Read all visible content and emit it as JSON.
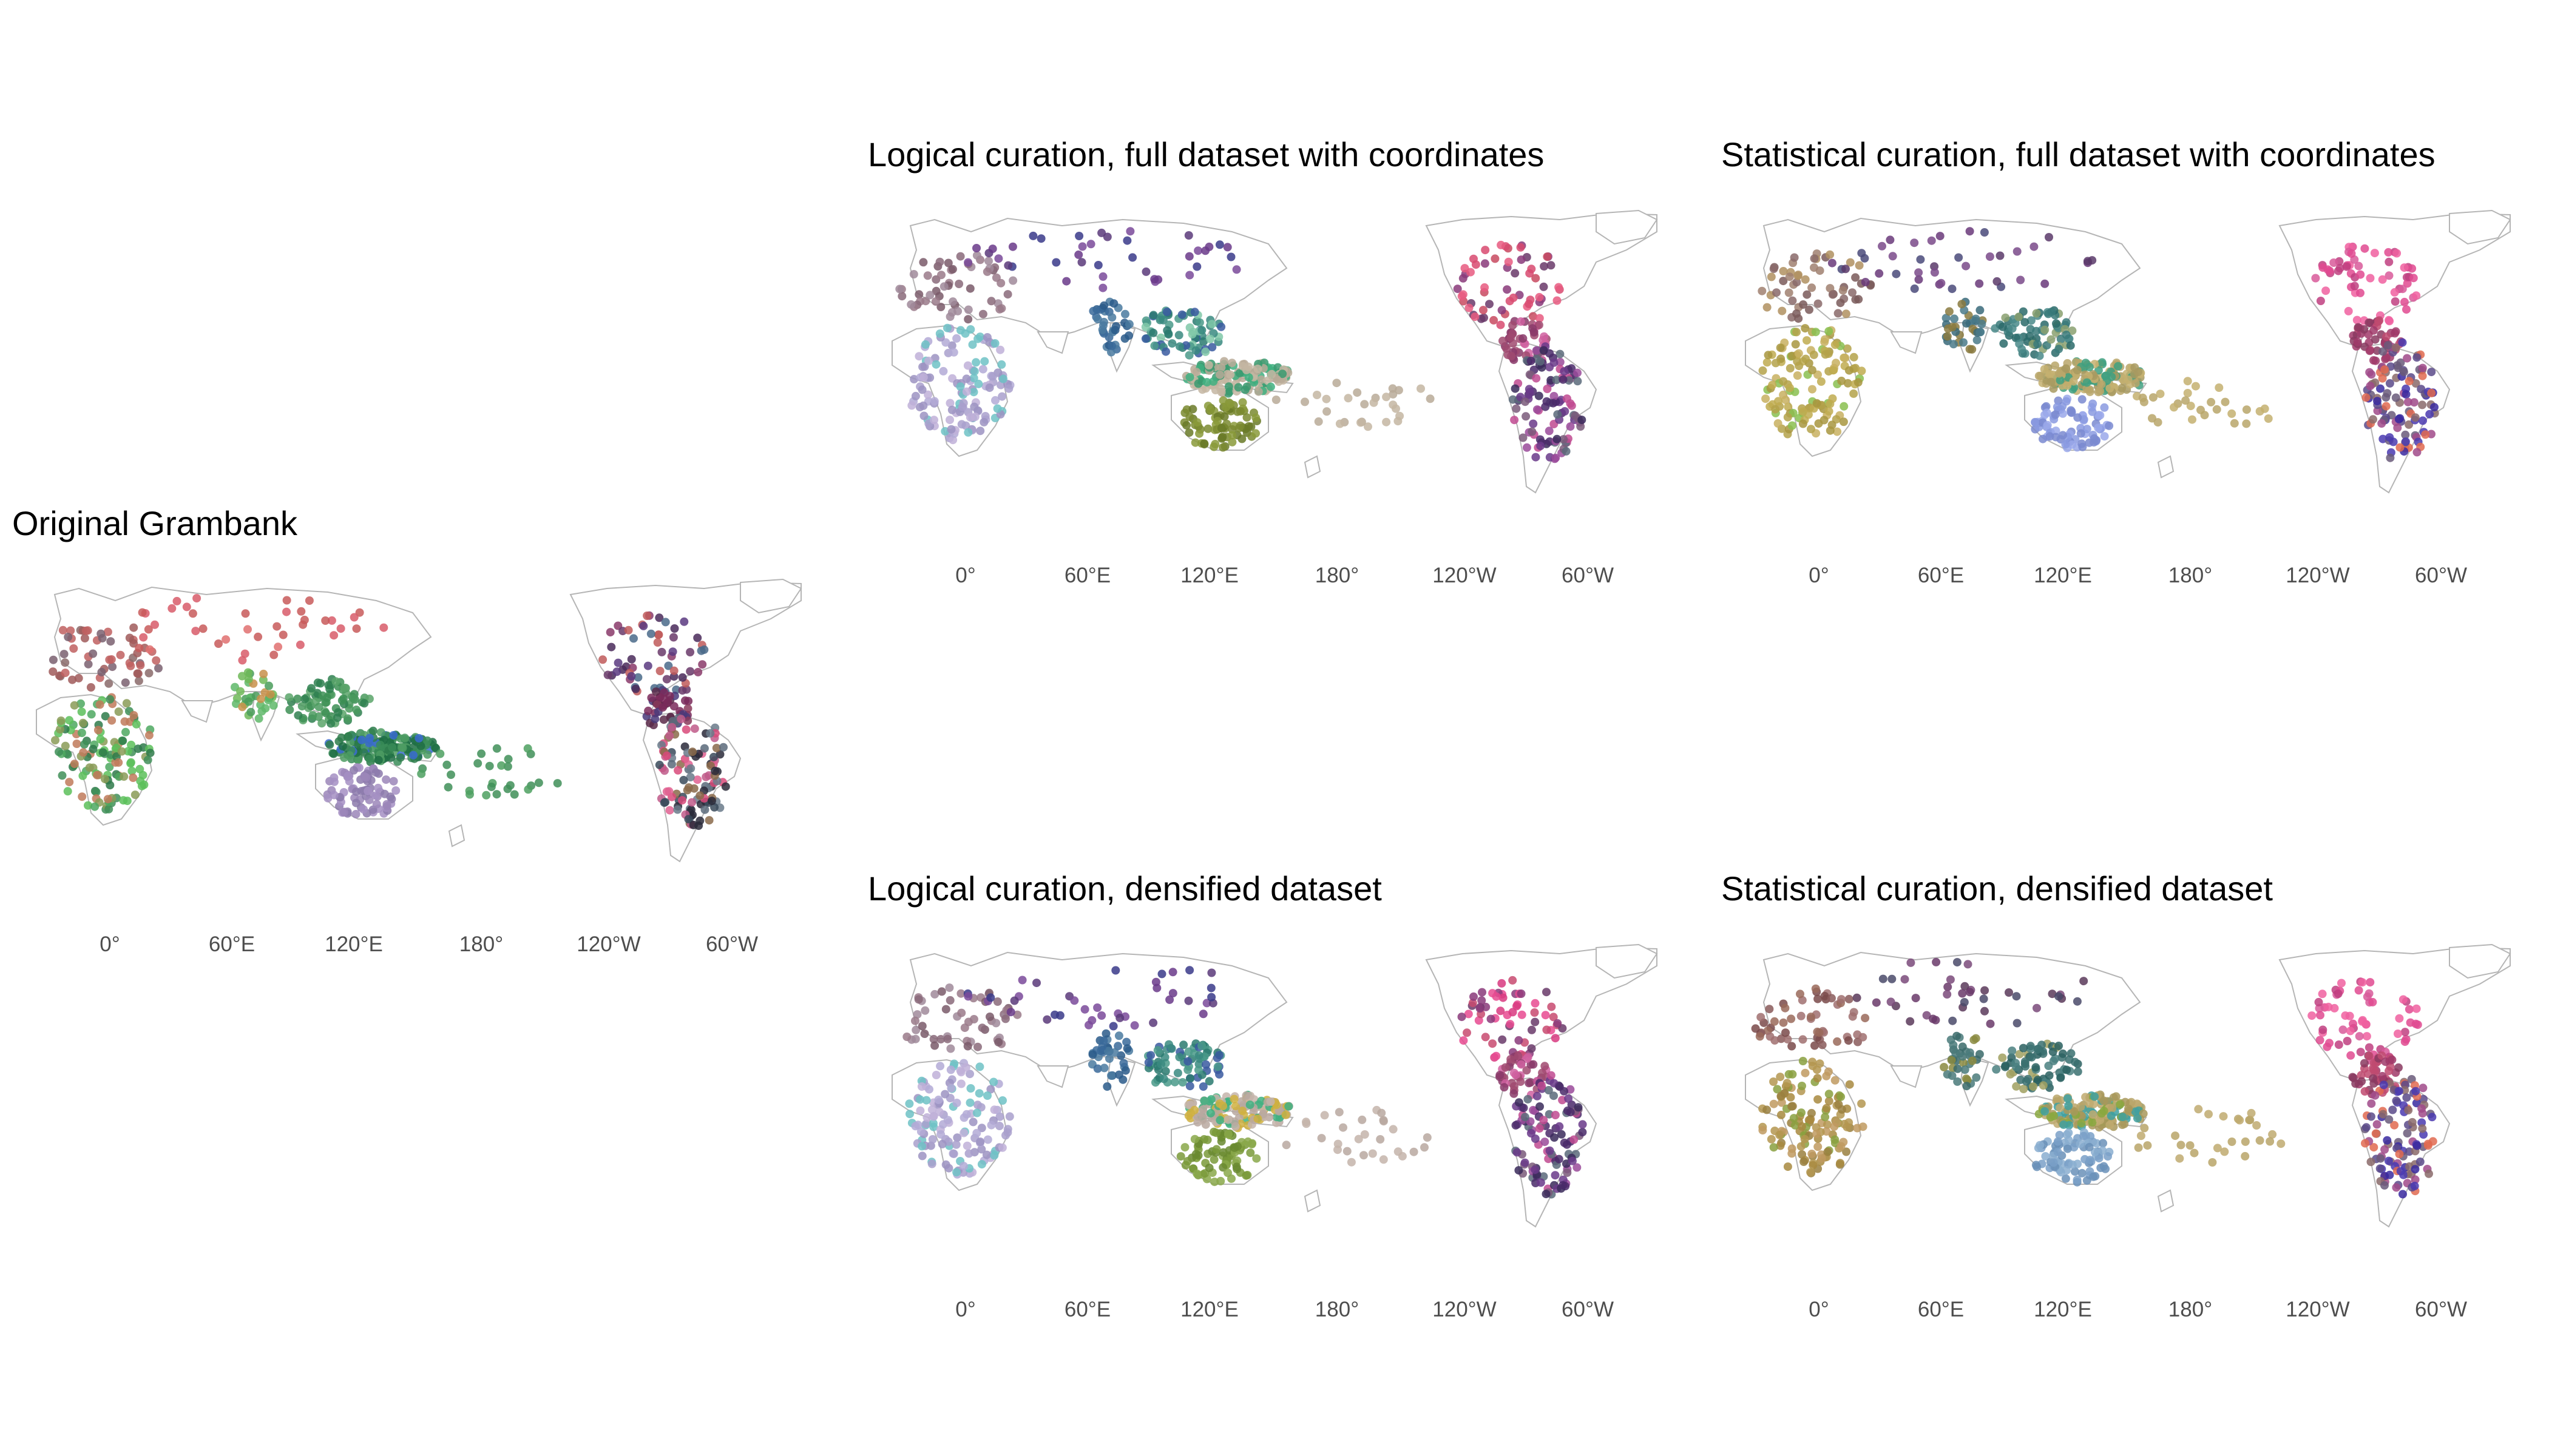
{
  "figure": {
    "panels": [
      {
        "id": "original",
        "title": "Original Grambank",
        "x_ticks": [
          "0°",
          "60°E",
          "120°E",
          "180°",
          "120°W",
          "60°W"
        ],
        "palette": {
          "africa": [
            "#3f8f58",
            "#4ea860",
            "#5cc05a",
            "#2e7a4a",
            "#8a9b57",
            "#c07a5a"
          ],
          "europe": [
            "#8a6a6a",
            "#a05a5a",
            "#c06060",
            "#7a6070"
          ],
          "siberia": [
            "#d85c6a",
            "#e07070",
            "#c85a5a"
          ],
          "southasia": [
            "#6fb858",
            "#c8904a",
            "#4a9c5a",
            "#5fb86a"
          ],
          "eastasia": [
            "#3d8f55",
            "#4a9a5e",
            "#2f8050",
            "#5aa46a"
          ],
          "newguinea": [
            "#2e7d4c",
            "#3a8c58",
            "#4d9c63",
            "#1e6e44",
            "#3a6ad0"
          ],
          "australia": [
            "#9b86b8",
            "#a58fc3",
            "#8c7aac"
          ],
          "pacific": [
            "#3f8f58",
            "#4ea060"
          ],
          "northamerica": [
            "#6a3a6a",
            "#4a2a5a",
            "#5a3a80",
            "#8a3a6a",
            "#c05a5a",
            "#4a6a8a"
          ],
          "centralamerica": [
            "#5a2a4a",
            "#7a2a5a",
            "#4a3a7a",
            "#8a3a5a"
          ],
          "southamerica": [
            "#d84a7a",
            "#e06090",
            "#3a4a5a",
            "#5a6a7a",
            "#8a6a4a",
            "#c05a8a",
            "#2a2a3a",
            "#6a7a8a"
          ]
        }
      },
      {
        "id": "logical-full",
        "title": "Logical curation, full dataset with coordinates",
        "x_ticks": [
          "0°",
          "60°E",
          "120°E",
          "180°",
          "120°W",
          "60°W"
        ],
        "palette": {
          "africa": [
            "#a9a0cc",
            "#b3aad6",
            "#9c93c2",
            "#6fc2c6",
            "#c0b0d8"
          ],
          "europe": [
            "#8a6a7a",
            "#a08a9a",
            "#7a5a6a",
            "#9a7a8a"
          ],
          "siberia": [
            "#6a3a8a",
            "#7a4a9a",
            "#5a3a7a",
            "#3a3a8a"
          ],
          "southasia": [
            "#3a6a9a",
            "#4a7aa0",
            "#2a5a8a"
          ],
          "eastasia": [
            "#3a8a80",
            "#4a9a8a",
            "#2a7a70",
            "#80c8a8",
            "#3a5aa0"
          ],
          "newguinea": [
            "#b8aa98",
            "#c4b6a2",
            "#40b080",
            "#3a9a70"
          ],
          "australia": [
            "#7a8a30",
            "#8a9a3a",
            "#6a7a28"
          ],
          "pacific": [
            "#c4b6a2",
            "#b8aa98"
          ],
          "northamerica": [
            "#d84a70",
            "#e85a80",
            "#6a3a6a",
            "#8a3a7a",
            "#c84a60"
          ],
          "centralamerica": [
            "#a04a70",
            "#8a3a6a",
            "#d060a0"
          ],
          "southamerica": [
            "#4a2a6a",
            "#3a2a5a",
            "#6a3a8a",
            "#7a5a7a",
            "#5a6a7a",
            "#9a4a9a",
            "#c04a90"
          ]
        }
      },
      {
        "id": "statistical-full",
        "title": "Statistical curation, full dataset with coordinates",
        "x_ticks": [
          "0°",
          "60°E",
          "120°E",
          "180°",
          "120°W",
          "60°W"
        ],
        "palette": {
          "africa": [
            "#b4a24a",
            "#c0ac50",
            "#a89640",
            "#8ac050",
            "#c8b060"
          ],
          "europe": [
            "#8a6a6a",
            "#a08070",
            "#7a5a5a",
            "#b09060"
          ],
          "siberia": [
            "#6a3a7a",
            "#7a4a8a",
            "#5a3a6a",
            "#4a4a7a"
          ],
          "southasia": [
            "#3a6a7a",
            "#4a7a8a",
            "#8a7a40"
          ],
          "eastasia": [
            "#3a7a7a",
            "#4a8a8a",
            "#2a6a6a",
            "#8aa070"
          ],
          "newguinea": [
            "#b8a66a",
            "#c4b070",
            "#a89a60",
            "#40a080"
          ],
          "australia": [
            "#8a9ae0",
            "#9aa8ea",
            "#7a8ad0"
          ],
          "pacific": [
            "#c4b070",
            "#b8a66a"
          ],
          "northamerica": [
            "#e04a90",
            "#f060a0",
            "#c04080",
            "#d85a9a"
          ],
          "centralamerica": [
            "#a03a6a",
            "#8a3a60",
            "#c04a70"
          ],
          "southamerica": [
            "#3a2aa0",
            "#4a3ab0",
            "#5a4a8a",
            "#8a6a6a",
            "#e06a50",
            "#6a5a7a",
            "#a04a8a"
          ]
        }
      },
      {
        "id": "logical-densified",
        "title": "Logical curation, densified dataset",
        "x_ticks": [
          "0°",
          "60°E",
          "120°E",
          "180°",
          "120°W",
          "60°W"
        ],
        "palette": {
          "africa": [
            "#a9a0cc",
            "#b3aad6",
            "#9c93c2",
            "#6fc2c6",
            "#c0b0d8"
          ],
          "europe": [
            "#8a6a7a",
            "#a08a9a",
            "#7a5a6a",
            "#9a7a8a"
          ],
          "siberia": [
            "#6a3a8a",
            "#7a4a9a",
            "#5a3a7a",
            "#3a3a8a"
          ],
          "southasia": [
            "#3a6a9a",
            "#4a7aa0",
            "#2a5a8a"
          ],
          "eastasia": [
            "#3a8a80",
            "#4a9a8a",
            "#2a7a70",
            "#3a5aa0"
          ],
          "newguinea": [
            "#b8a8a0",
            "#c4b4aa",
            "#40b080",
            "#d0b040"
          ],
          "australia": [
            "#7a9a3a",
            "#8aa84a",
            "#6a8a30"
          ],
          "pacific": [
            "#c4b4aa",
            "#b8a8a0"
          ],
          "northamerica": [
            "#d83a80",
            "#e84a90",
            "#6a3a6a",
            "#8a3a7a",
            "#c84a70"
          ],
          "centralamerica": [
            "#a04a70",
            "#8a3a6a",
            "#d060a0"
          ],
          "southamerica": [
            "#4a2a6a",
            "#3a2a5a",
            "#6a3a8a",
            "#7a5a7a",
            "#5a6a7a",
            "#9a4a9a",
            "#c04a90"
          ]
        }
      },
      {
        "id": "statistical-densified",
        "title": "Statistical curation, densified dataset",
        "x_ticks": [
          "0°",
          "60°E",
          "120°E",
          "180°",
          "120°W",
          "60°W"
        ],
        "palette": {
          "africa": [
            "#a88a40",
            "#b49650",
            "#9a8040",
            "#8aa040",
            "#c09a60"
          ],
          "europe": [
            "#8a5a5a",
            "#a07070",
            "#7a4a4a",
            "#9a6a5a"
          ],
          "siberia": [
            "#6a3a6a",
            "#7a4a7a",
            "#5a3a5a",
            "#4a4a6a"
          ],
          "southasia": [
            "#3a6a6a",
            "#4a7a7a",
            "#8a8a40"
          ],
          "eastasia": [
            "#3a7070",
            "#4a8080",
            "#2a6060",
            "#a0a060"
          ],
          "newguinea": [
            "#c0aa70",
            "#b8a468",
            "#a8985a",
            "#40a0a0",
            "#8aa840"
          ],
          "australia": [
            "#7aa0c8",
            "#8aaed0",
            "#6a90b8"
          ],
          "pacific": [
            "#c0aa70",
            "#b8a468"
          ],
          "northamerica": [
            "#e04a90",
            "#f060a0",
            "#c04080",
            "#d85a9a"
          ],
          "centralamerica": [
            "#a03a6a",
            "#8a3a60",
            "#c04a70"
          ],
          "southamerica": [
            "#3a2aa0",
            "#4a3ab0",
            "#5a4a8a",
            "#8a6a6a",
            "#e06a50",
            "#6a5a7a",
            "#a04a8a"
          ]
        }
      }
    ]
  }
}
